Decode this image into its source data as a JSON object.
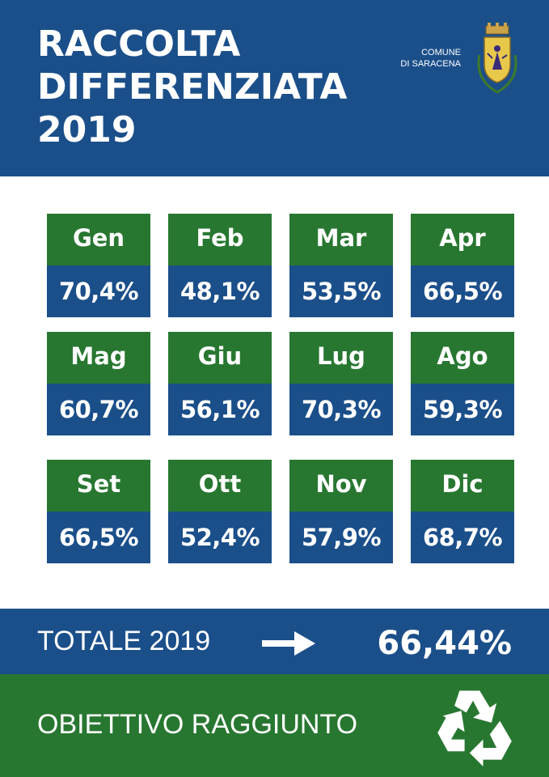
{
  "header": {
    "title_lines": [
      "RACCOLTA",
      "DIFFERENZIATA",
      "2019"
    ],
    "comune_lines": [
      "COMUNE",
      "DI SARACENA"
    ]
  },
  "months": [
    {
      "label": "Gen",
      "value": "70,4%"
    },
    {
      "label": "Feb",
      "value": "48,1%"
    },
    {
      "label": "Mar",
      "value": "53,5%"
    },
    {
      "label": "Apr",
      "value": "66,5%"
    },
    {
      "label": "Mag",
      "value": "60,7%"
    },
    {
      "label": "Giu",
      "value": "56,1%"
    },
    {
      "label": "Lug",
      "value": "70,3%"
    },
    {
      "label": "Ago",
      "value": "59,3%"
    },
    {
      "label": "Set",
      "value": "66,5%"
    },
    {
      "label": "Ott",
      "value": "52,4%"
    },
    {
      "label": "Nov",
      "value": "57,9%"
    },
    {
      "label": "Dic",
      "value": "68,7%"
    }
  ],
  "total": {
    "label": "TOTALE 2019",
    "value": "66,44%"
  },
  "footer": {
    "label": "OBIETTIVO RAGGIUNTO"
  },
  "icons": {
    "crest": "saracena-coat-of-arms-icon",
    "arrow": "arrow-right-icon",
    "recycle": "recycle-icon"
  },
  "colors": {
    "blue": "#1b4f8a",
    "green": "#287731",
    "white": "#ffffff"
  }
}
